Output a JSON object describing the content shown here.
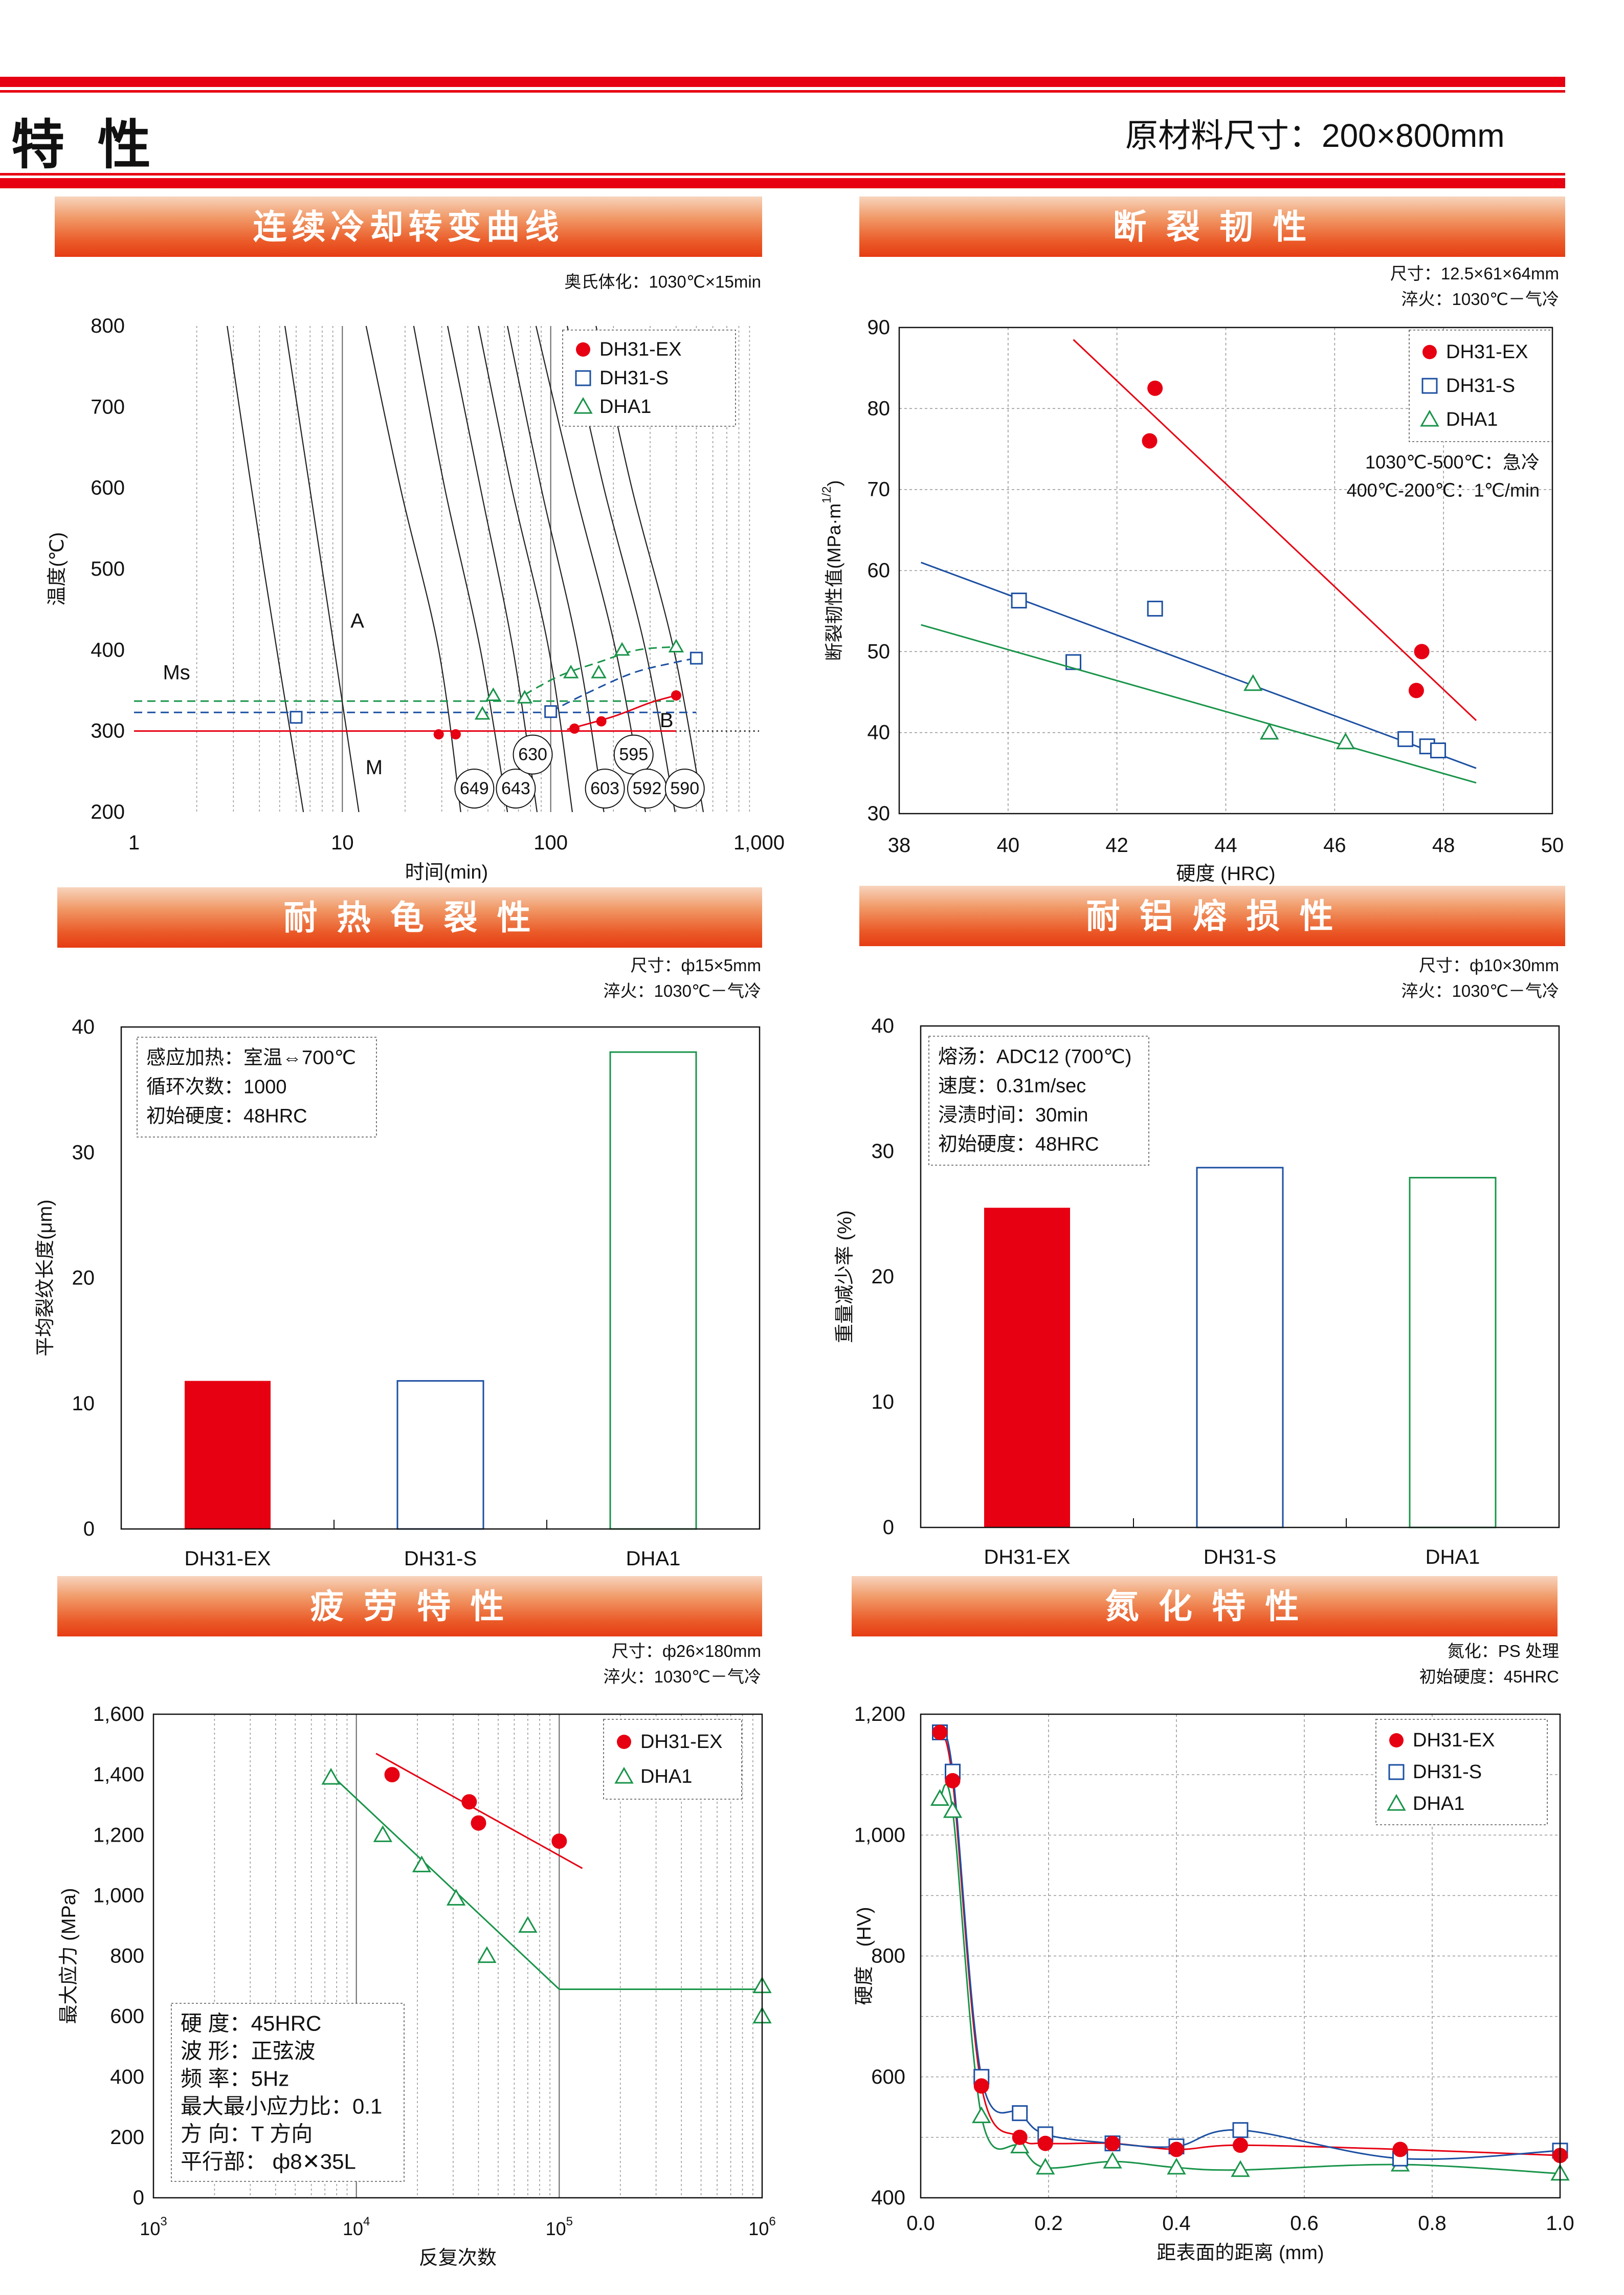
{
  "header": {
    "title": "特 性",
    "subtitle": "原材料尺寸：200×800mm"
  },
  "colors": {
    "red": "#e60012",
    "blue": "#1d50a2",
    "green": "#19944a"
  },
  "panels": {
    "cct": {
      "banner": "连续冷却转变曲线",
      "notes": [
        "奥氏体化：1030℃×15min"
      ]
    },
    "toughness": {
      "banner": "断 裂 韧 性",
      "notes": [
        "尺寸：12.5×61×64mm",
        "淬火：1030℃－气冷"
      ]
    },
    "heatcheck": {
      "banner": "耐 热 龟 裂 性",
      "notes": [
        "尺寸：ф15×5mm",
        "淬火：1030℃－气冷"
      ]
    },
    "erosion": {
      "banner": "耐 铝 熔 损 性",
      "notes": [
        "尺寸：ф10×30mm",
        "淬火：1030℃－气冷"
      ]
    },
    "fatigue": {
      "banner": "疲 劳 特 性",
      "notes": [
        "尺寸：ф26×180mm",
        "淬火：1030℃－气冷"
      ]
    },
    "nitriding": {
      "banner": "氮 化 特 性",
      "notes": [
        "氮化：PS 处理",
        "初始硬度：45HRC"
      ]
    }
  },
  "chart_data": [
    {
      "id": "cct",
      "type": "line",
      "xlabel": "时间(min)",
      "ylabel": "温度(℃)",
      "xscale": "log",
      "xlim": [
        1,
        1000
      ],
      "ylim": [
        200,
        800
      ],
      "xticks": [
        1,
        10,
        100,
        1000
      ],
      "xtick_labels": [
        "1",
        "10",
        "100",
        "1,000"
      ],
      "yticks": [
        200,
        300,
        400,
        500,
        600,
        700,
        800
      ],
      "legend": [
        "DH31-EX",
        "DH31-S",
        "DHA1"
      ],
      "region_labels": [
        {
          "text": "A",
          "x": 11.8,
          "y": 436
        },
        {
          "text": "Ms",
          "x": 1.6,
          "y": 372
        },
        {
          "text": "B",
          "x": 360,
          "y": 313
        },
        {
          "text": "M",
          "x": 14.2,
          "y": 255
        }
      ],
      "ms_lines": [
        {
          "series": "DH31-EX",
          "x": [
            1,
            400
          ],
          "y": [
            300,
            300
          ]
        },
        {
          "series": "DH31-S",
          "x": [
            1,
            500
          ],
          "y": [
            323,
            323
          ]
        },
        {
          "series": "DHA1",
          "x": [
            1,
            420
          ],
          "y": [
            337,
            337
          ]
        }
      ],
      "transform_curves": [
        {
          "series": "DH31-EX",
          "x": [
            120,
            200,
            300,
            400
          ],
          "y": [
            302,
            318,
            335,
            344
          ]
        },
        {
          "series": "DH31-S",
          "x": [
            100,
            150,
            250,
            400,
            500
          ],
          "y": [
            324,
            347,
            372,
            385,
            390
          ]
        },
        {
          "series": "DHA1",
          "x": [
            75,
            110,
            170,
            260,
            400
          ],
          "y": [
            345,
            368,
            385,
            400,
            404
          ]
        }
      ],
      "points": [
        {
          "series": "DH31-EX",
          "x": [
            29,
            35,
            130,
            175,
            400
          ],
          "y": [
            296,
            296,
            303,
            312,
            344
          ]
        },
        {
          "series": "DH31-S",
          "x": [
            6,
            100,
            500
          ],
          "y": [
            317,
            324,
            390
          ]
        },
        {
          "series": "DHA1",
          "x": [
            53,
            47,
            75,
            125,
            170,
            220,
            400
          ],
          "y": [
            344,
            321,
            341,
            372,
            372,
            400,
            404
          ]
        }
      ],
      "cooling_curves": [
        {
          "x": [
            2.8,
            4.2,
            6.5
          ],
          "y": [
            800,
            500,
            200
          ]
        },
        {
          "x": [
            5.3,
            8,
            12
          ],
          "y": [
            800,
            500,
            200
          ]
        },
        {
          "x": [
            13,
            19,
            29,
            37
          ],
          "y": [
            800,
            600,
            400,
            200
          ]
        },
        {
          "x": [
            22,
            31,
            46,
            62
          ],
          "y": [
            800,
            600,
            400,
            200
          ]
        },
        {
          "x": [
            32,
            46,
            66,
            86
          ],
          "y": [
            800,
            600,
            400,
            200
          ]
        },
        {
          "x": [
            45,
            65,
            98,
            127
          ],
          "y": [
            800,
            600,
            400,
            200
          ]
        },
        {
          "x": [
            62,
            90,
            135,
            180
          ],
          "y": [
            800,
            600,
            400,
            200
          ]
        },
        {
          "x": [
            85,
            130,
            205,
            285
          ],
          "y": [
            800,
            600,
            400,
            200
          ]
        },
        {
          "x": [
            120,
            180,
            285,
            395
          ],
          "y": [
            800,
            600,
            400,
            200
          ]
        },
        {
          "x": [
            165,
            245,
            390,
            540
          ],
          "y": [
            800,
            600,
            400,
            200
          ]
        }
      ],
      "hardness_labels": [
        {
          "text": "649",
          "x": 43,
          "y": 229
        },
        {
          "text": "643",
          "x": 68,
          "y": 229
        },
        {
          "text": "630",
          "x": 82,
          "y": 271
        },
        {
          "text": "603",
          "x": 182,
          "y": 229
        },
        {
          "text": "595",
          "x": 250,
          "y": 271
        },
        {
          "text": "592",
          "x": 290,
          "y": 229
        },
        {
          "text": "590",
          "x": 440,
          "y": 229
        }
      ]
    },
    {
      "id": "toughness",
      "type": "scatter",
      "xlabel": "硬度 (HRC)",
      "ylabel": "断裂韧性值(MPa·m",
      "ylabel_sup": "1/2",
      "ylabel_close": ")",
      "xlim": [
        38,
        50
      ],
      "ylim": [
        30,
        90
      ],
      "xticks": [
        38,
        40,
        42,
        44,
        46,
        48,
        50
      ],
      "yticks": [
        30,
        40,
        50,
        60,
        70,
        80,
        90
      ],
      "legend": [
        "DH31-EX",
        "DH31-S",
        "DHA1"
      ],
      "annotation": [
        "1030℃-500℃：急冷",
        "400℃-200℃：1℃/min"
      ],
      "series": [
        {
          "name": "DH31-EX",
          "x": [
            42.7,
            42.6,
            47.6,
            47.5
          ],
          "y": [
            82.5,
            76,
            50,
            45.2
          ],
          "fit": {
            "x": [
              41.2,
              48.6
            ],
            "y": [
              88.5,
              41.5
            ]
          }
        },
        {
          "name": "DH31-S",
          "x": [
            40.2,
            41.2,
            42.7,
            47.3,
            47.7,
            47.9
          ],
          "y": [
            56.3,
            48.7,
            55.3,
            39.2,
            38.3,
            37.8
          ],
          "fit": {
            "x": [
              38.4,
              48.6
            ],
            "y": [
              61,
              35.6
            ]
          }
        },
        {
          "name": "DHA1",
          "x": [
            44.5,
            44.8,
            46.2
          ],
          "y": [
            46,
            40,
            38.8
          ],
          "fit": {
            "x": [
              38.4,
              48.6
            ],
            "y": [
              53.3,
              33.8
            ]
          }
        }
      ]
    },
    {
      "id": "heatcheck",
      "type": "bar",
      "categories": [
        "DH31-EX",
        "DH31-S",
        "DHA1"
      ],
      "values": [
        11.8,
        11.8,
        38
      ],
      "ylabel": "平均裂纹长度(μm)",
      "ylim": [
        0,
        40
      ],
      "yticks": [
        0,
        10,
        20,
        30,
        40
      ],
      "fills": [
        "solid",
        "outline",
        "outline"
      ],
      "annotation": [
        "感应加热：室温⇔700℃",
        "循环次数：1000",
        "初始硬度：48HRC"
      ]
    },
    {
      "id": "erosion",
      "type": "bar",
      "categories": [
        "DH31-EX",
        "DH31-S",
        "DHA1"
      ],
      "values": [
        25.5,
        28.7,
        27.9
      ],
      "ylabel": "重量减少率 (%)",
      "ylim": [
        0,
        40
      ],
      "yticks": [
        0,
        10,
        20,
        30,
        40
      ],
      "fills": [
        "solid",
        "outline",
        "outline"
      ],
      "annotation": [
        "熔汤：ADC12 (700℃)",
        "速度：0.31m/sec",
        "浸渍时间：30min",
        "初始硬度：48HRC"
      ]
    },
    {
      "id": "fatigue",
      "type": "scatter",
      "xlabel": "反复次数",
      "ylabel": "最大应力 (MPa)",
      "xscale": "log",
      "xlim": [
        1000,
        1000000
      ],
      "ylim": [
        0,
        1600
      ],
      "xticks": [
        1000,
        10000,
        100000,
        1000000
      ],
      "xtick_base": "10",
      "xtick_exp": [
        "3",
        "4",
        "5",
        "6"
      ],
      "yticks": [
        0,
        200,
        400,
        600,
        800,
        1000,
        1200,
        1400,
        1600
      ],
      "ytick_labels": [
        "0",
        "200",
        "400",
        "600",
        "800",
        "1,000",
        "1,200",
        "1,400",
        "1,600"
      ],
      "legend": [
        "DH31-EX",
        "DHA1"
      ],
      "annotation": [
        "硬 度：45HRC",
        "波 形：正弦波",
        "频 率：5Hz",
        "最大最小应力比：0.1",
        "方 向：T 方向",
        "平行部：  ф8✕35L"
      ],
      "series": [
        {
          "name": "DH31-EX",
          "x": [
            15000,
            36000,
            40000,
            100000
          ],
          "y": [
            1400,
            1310,
            1240,
            1180
          ],
          "fit": {
            "x": [
              12500,
              130000
            ],
            "y": [
              1470,
              1090
            ]
          }
        },
        {
          "name": "DHA1",
          "x": [
            7500,
            13500,
            21000,
            31000,
            44000,
            70000,
            1000000,
            1000000
          ],
          "y": [
            1390,
            1200,
            1100,
            990,
            800,
            900,
            700,
            600
          ],
          "fit": {
            "x": [
              7500,
              100000,
              1000000
            ],
            "y": [
              1400,
              690,
              690
            ]
          }
        }
      ]
    },
    {
      "id": "nitriding",
      "type": "line",
      "xlabel": "距表面的距离 (mm)",
      "ylabel": "硬度　(HV)",
      "xlim": [
        0,
        1.0
      ],
      "ylim": [
        400,
        1200
      ],
      "xticks": [
        0,
        0.2,
        0.4,
        0.6,
        0.8,
        1.0
      ],
      "xtick_labels": [
        "0.0",
        "0.2",
        "0.4",
        "0.6",
        "0.8",
        "1.0"
      ],
      "yticks": [
        400,
        600,
        800,
        1000,
        1200
      ],
      "ytick_labels": [
        "400",
        "600",
        "800",
        "1,000",
        "1,200"
      ],
      "legend": [
        "DH31-EX",
        "DH31-S",
        "DHA1"
      ],
      "series": [
        {
          "name": "DH31-EX",
          "x": [
            0.03,
            0.05,
            0.095,
            0.155,
            0.195,
            0.3,
            0.4,
            0.5,
            0.75,
            1.0
          ],
          "y": [
            1170,
            1090,
            585,
            500,
            490,
            490,
            480,
            487,
            480,
            470
          ]
        },
        {
          "name": "DH31-S",
          "x": [
            0.03,
            0.05,
            0.095,
            0.155,
            0.195,
            0.3,
            0.4,
            0.5,
            0.75,
            1.0
          ],
          "y": [
            1170,
            1105,
            600,
            540,
            505,
            490,
            485,
            512,
            465,
            478
          ]
        },
        {
          "name": "DHA1",
          "x": [
            0.03,
            0.05,
            0.095,
            0.155,
            0.195,
            0.3,
            0.4,
            0.5,
            0.75,
            1.0
          ],
          "y": [
            1060,
            1040,
            535,
            485,
            450,
            460,
            450,
            446,
            455,
            440
          ]
        }
      ]
    }
  ]
}
